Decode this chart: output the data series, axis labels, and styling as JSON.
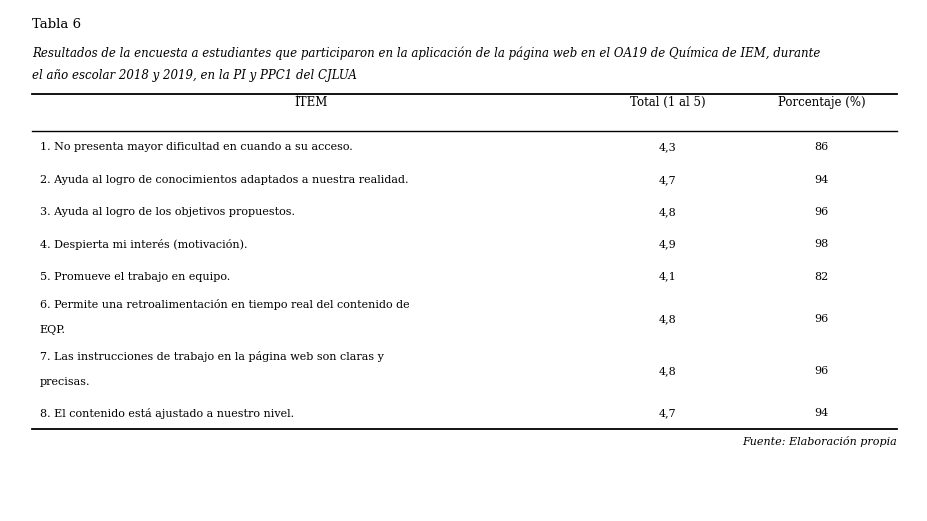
{
  "table_label": "Tabla 6",
  "caption_line1": "Resultados de la encuesta a estudiantes que participaron en la aplicación de la página web en el OA19 de Química de IEM, durante",
  "caption_line2": "el año escolar 2018 y 2019, en la PI y PPC1 del CJLUA",
  "col_headers": [
    "ÌTEM",
    "Total (1 al 5)",
    "Porcentaje (%)"
  ],
  "rows": [
    {
      "item": "1. No presenta mayor dificultad en cuando a su acceso.",
      "total": "4,3",
      "pct": "86"
    },
    {
      "item": "2. Ayuda al logro de conocimientos adaptados a nuestra realidad.",
      "total": "4,7",
      "pct": "94"
    },
    {
      "item": "3. Ayuda al logro de los objetivos propuestos.",
      "total": "4,8",
      "pct": "96"
    },
    {
      "item": "4. Despierta mi interés (motivación).",
      "total": "4,9",
      "pct": "98"
    },
    {
      "item": "5. Promueve el trabajo en equipo.",
      "total": "4,1",
      "pct": "82"
    },
    {
      "item_line1": "6. Permite una retroalimentación en tiempo real del contenido de",
      "item_line2": "EQP.",
      "total": "4,8",
      "pct": "96"
    },
    {
      "item_line1": "7. Las instrucciones de trabajo en la página web son claras y",
      "item_line2": "precisas.",
      "total": "4,8",
      "pct": "96"
    },
    {
      "item": "8. El contenido está ajustado a nuestro nivel.",
      "total": "4,7",
      "pct": "94"
    }
  ],
  "footer": "Fuente: Elaboración propia",
  "bg_color": "#ffffff",
  "text_color": "#000000",
  "font_family": "serif"
}
